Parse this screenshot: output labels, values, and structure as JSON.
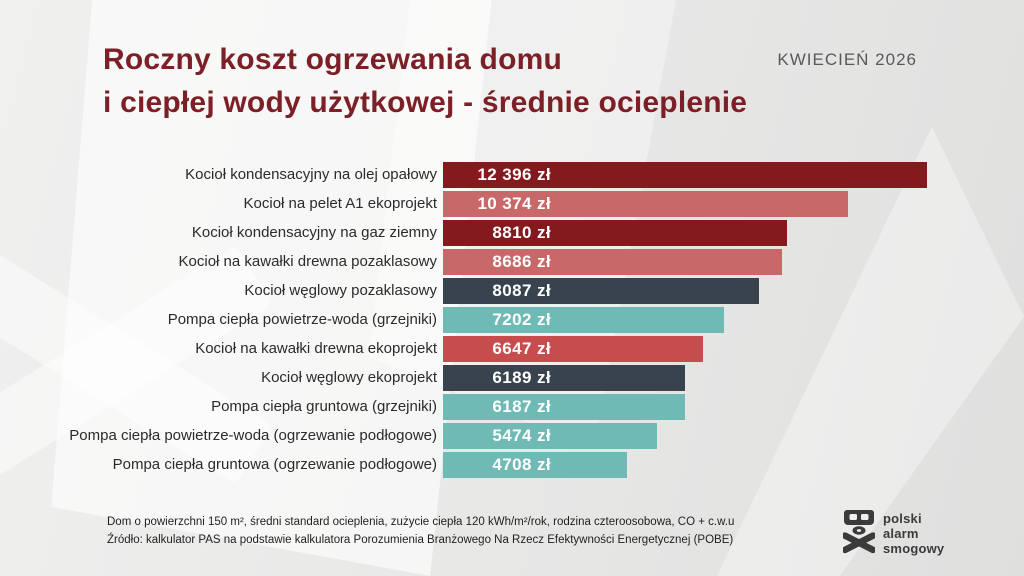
{
  "header": {
    "title_line1": "Roczny koszt ogrzewania domu",
    "title_line2": "i ciepłej wody użytkowej - średnie ocieplenie",
    "date": "KWIECIEŃ 2026"
  },
  "chart_data": {
    "type": "bar",
    "orientation": "horizontal",
    "title": "Roczny koszt ogrzewania domu i ciepłej wody użytkowej - średnie ocieplenie",
    "unit": "zł",
    "xlim": [
      0,
      12396
    ],
    "grid": false,
    "legend": "none",
    "categories": [
      "Kocioł kondensacyjny na olej opałowy",
      "Kocioł na pelet A1 ekoprojekt",
      "Kocioł kondensacyjny na gaz ziemny",
      "Kocioł na kawałki drewna pozaklasowy",
      "Kocioł węglowy pozaklasowy",
      "Pompa ciepła powietrze-woda (grzejniki)",
      "Kocioł na kawałki drewna ekoprojekt",
      "Kocioł węglowy ekoprojekt",
      "Pompa ciepła gruntowa (grzejniki)",
      "Pompa ciepła powietrze-woda (ogrzewanie podłogowe)",
      "Pompa ciepła gruntowa (ogrzewanie podłogowe)"
    ],
    "values": [
      12396,
      10374,
      8810,
      8686,
      8087,
      7202,
      6647,
      6189,
      6187,
      5474,
      4708
    ],
    "value_labels": [
      "12 396 zł",
      "10 374 zł",
      "8810 zł",
      "8686 zł",
      "8087 zł",
      "7202 zł",
      "6647 zł",
      "6189 zł",
      "6187 zł",
      "5474 zł",
      "4708 zł"
    ],
    "bar_colors": [
      "#841a1e",
      "#c96868",
      "#841a1e",
      "#c96868",
      "#39434e",
      "#6fbab4",
      "#c64c4e",
      "#39434e",
      "#6fbab4",
      "#6fbab4",
      "#6fbab4"
    ],
    "palette": {
      "dark_red": "#841a1e",
      "salmon": "#c96868",
      "bright_red": "#c64c4e",
      "charcoal": "#39434e",
      "teal": "#6fbab4",
      "title_maroon": "#7d1f26"
    }
  },
  "footer": {
    "line1": "Dom o powierzchni 150 m², średni standard ocieplenia, zużycie ciepła 120 kWh/m²/rok, rodzina czteroosobowa, CO + c.w.u",
    "line2": "Źródło: kalkulator PAS na podstawie kalkulatora Porozumienia Branżowego Na Rzecz Efektywności Energetycznej (POBE)"
  },
  "logo": {
    "icon": "skull-gas-mask-crossbones-icon",
    "line1": "polski",
    "line2": "alarm",
    "line3": "smogowy"
  }
}
